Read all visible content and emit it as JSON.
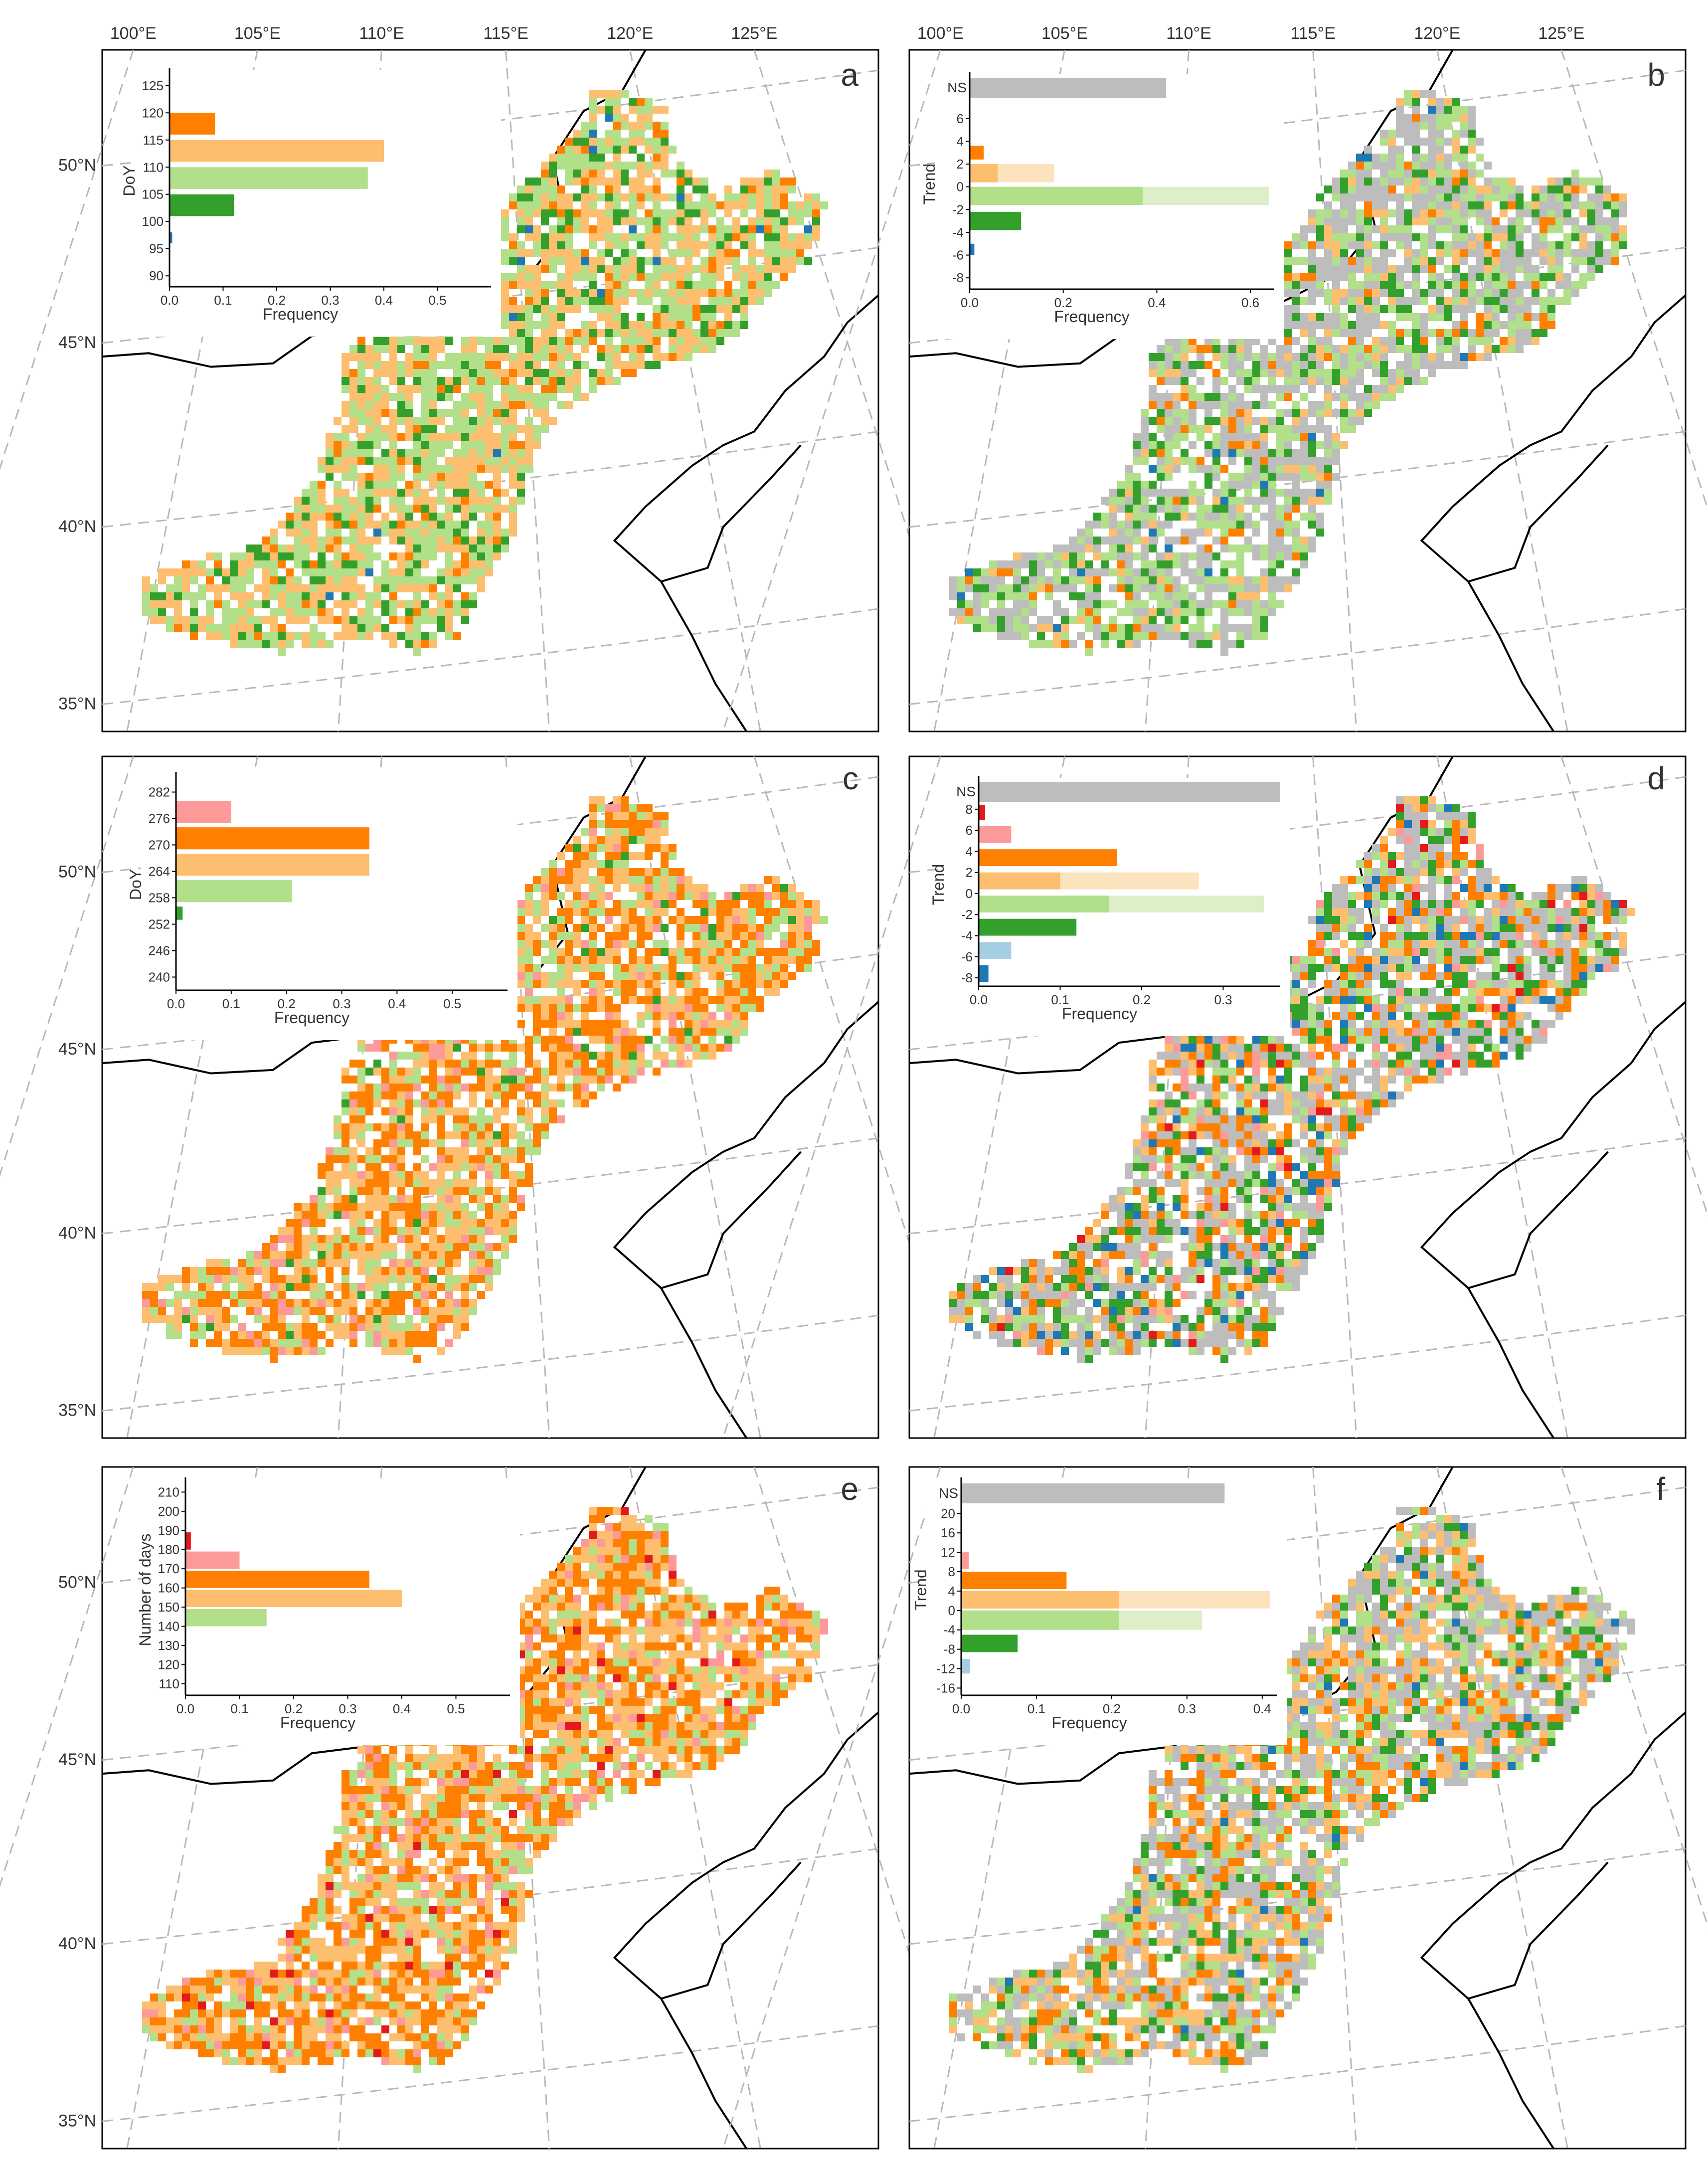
{
  "figure": {
    "top_lon_labels": [
      "100°E",
      "105°E",
      "110°E",
      "115°E",
      "120°E",
      "125°E"
    ],
    "lat_labels": [
      "50°N",
      "45°N",
      "40°N",
      "35°N"
    ]
  },
  "colors": {
    "dark_green": "#33a02c",
    "light_green": "#b2df8a",
    "light_green_pale": "#dcefc8",
    "light_orange": "#fdbf6f",
    "light_orange_pale": "#fde2be",
    "orange": "#ff7f00",
    "pink": "#fb9a99",
    "red": "#e31a1c",
    "light_blue": "#a6cee3",
    "blue": "#1f78b4",
    "gray": "#bdbdbd"
  },
  "chart_data": [
    {
      "panel": "a",
      "type": "bar",
      "orientation": "horizontal",
      "ylabel": "DoY",
      "xlabel": "Frequency",
      "yticks": [
        90,
        95,
        100,
        105,
        110,
        115,
        120,
        125
      ],
      "xticks": [
        0.0,
        0.1,
        0.2,
        0.3,
        0.4,
        0.5
      ],
      "xlim": [
        0,
        0.6
      ],
      "ylim": [
        88,
        127
      ],
      "bars": [
        {
          "y0": 96,
          "y1": 98,
          "value": 0.005,
          "color": "blue"
        },
        {
          "y0": 101,
          "y1": 105,
          "value": 0.12,
          "color": "dark_green"
        },
        {
          "y0": 106,
          "y1": 110,
          "value": 0.37,
          "color": "light_green"
        },
        {
          "y0": 111,
          "y1": 115,
          "value": 0.4,
          "color": "light_orange"
        },
        {
          "y0": 116,
          "y1": 120,
          "value": 0.085,
          "color": "orange"
        }
      ]
    },
    {
      "panel": "b",
      "type": "bar",
      "orientation": "horizontal",
      "ylabel": "Trend",
      "xlabel": "Frequency",
      "ns_label": "NS",
      "ns_value": 0.42,
      "yticks": [
        -8,
        -6,
        -4,
        -2,
        0,
        2,
        4,
        6
      ],
      "xticks": [
        0.0,
        0.2,
        0.4,
        0.6
      ],
      "xlim": [
        0,
        0.65
      ],
      "ylim": [
        -9,
        9.5
      ],
      "bars": [
        {
          "y0": -6,
          "y1": -5,
          "value": 0.01,
          "color": "blue"
        },
        {
          "y0": -3.8,
          "y1": -2.2,
          "value": 0.11,
          "color": "dark_green"
        },
        {
          "y0": -1.6,
          "y1": 0,
          "value": 0.37,
          "pale": 0.64,
          "color": "light_green"
        },
        {
          "y0": 0.4,
          "y1": 2,
          "value": 0.06,
          "pale": 0.18,
          "color": "light_orange"
        },
        {
          "y0": 2.4,
          "y1": 3.6,
          "value": 0.03,
          "color": "orange"
        }
      ]
    },
    {
      "panel": "c",
      "type": "bar",
      "orientation": "horizontal",
      "ylabel": "DoY",
      "xlabel": "Frequency",
      "yticks": [
        240,
        246,
        252,
        258,
        264,
        270,
        276,
        282
      ],
      "xticks": [
        0.0,
        0.1,
        0.2,
        0.3,
        0.4,
        0.5
      ],
      "xlim": [
        0,
        0.6
      ],
      "ylim": [
        237,
        285
      ],
      "bars": [
        {
          "y0": 253,
          "y1": 256,
          "value": 0.012,
          "color": "dark_green"
        },
        {
          "y0": 257,
          "y1": 262,
          "value": 0.21,
          "color": "light_green"
        },
        {
          "y0": 263,
          "y1": 268,
          "value": 0.35,
          "color": "light_orange"
        },
        {
          "y0": 269,
          "y1": 274,
          "value": 0.35,
          "color": "orange"
        },
        {
          "y0": 275,
          "y1": 280,
          "value": 0.1,
          "color": "pink"
        }
      ]
    },
    {
      "panel": "d",
      "type": "bar",
      "orientation": "horizontal",
      "ylabel": "Trend",
      "xlabel": "Frequency",
      "ns_label": "NS",
      "ns_value": 0.37,
      "yticks": [
        -8,
        -6,
        -4,
        -2,
        0,
        2,
        4,
        6,
        8
      ],
      "xticks": [
        0.0,
        0.1,
        0.2,
        0.3
      ],
      "xlim": [
        0,
        0.37
      ],
      "ylim": [
        -8.8,
        10.5
      ],
      "bars": [
        {
          "y0": -8.4,
          "y1": -6.8,
          "value": 0.012,
          "color": "blue"
        },
        {
          "y0": -6.2,
          "y1": -4.6,
          "value": 0.04,
          "color": "light_blue"
        },
        {
          "y0": -4,
          "y1": -2.4,
          "value": 0.12,
          "color": "dark_green"
        },
        {
          "y0": -1.8,
          "y1": -0.2,
          "value": 0.16,
          "pale": 0.35,
          "color": "light_green"
        },
        {
          "y0": 0.4,
          "y1": 2,
          "value": 0.1,
          "pale": 0.27,
          "color": "light_orange"
        },
        {
          "y0": 2.6,
          "y1": 4.2,
          "value": 0.17,
          "color": "orange"
        },
        {
          "y0": 4.8,
          "y1": 6.4,
          "value": 0.04,
          "color": "pink"
        },
        {
          "y0": 7,
          "y1": 8.4,
          "value": 0.008,
          "color": "red"
        }
      ]
    },
    {
      "panel": "e",
      "type": "bar",
      "orientation": "horizontal",
      "ylabel": "Number of days",
      "xlabel": "Frequency",
      "yticks": [
        110,
        120,
        130,
        140,
        150,
        160,
        170,
        180,
        190,
        200,
        210
      ],
      "xticks": [
        0.0,
        0.1,
        0.2,
        0.3,
        0.4,
        0.5
      ],
      "xlim": [
        0,
        0.6
      ],
      "ylim": [
        104,
        214
      ],
      "bars": [
        {
          "y0": 140,
          "y1": 149,
          "value": 0.15,
          "color": "light_green"
        },
        {
          "y0": 150,
          "y1": 159,
          "value": 0.4,
          "color": "light_orange"
        },
        {
          "y0": 160,
          "y1": 169,
          "value": 0.34,
          "color": "orange"
        },
        {
          "y0": 170,
          "y1": 179,
          "value": 0.1,
          "color": "pink"
        },
        {
          "y0": 180,
          "y1": 189,
          "value": 0.01,
          "color": "red"
        }
      ]
    },
    {
      "panel": "f",
      "type": "bar",
      "orientation": "horizontal",
      "ylabel": "Trend",
      "xlabel": "Frequency",
      "ns_label": "NS",
      "ns_value": 0.35,
      "yticks": [
        -16,
        -12,
        -8,
        -4,
        0,
        4,
        8,
        12,
        16,
        20
      ],
      "xticks": [
        0.0,
        0.1,
        0.2,
        0.3,
        0.4
      ],
      "xlim": [
        0,
        0.42
      ],
      "ylim": [
        -17.5,
        26
      ],
      "bars": [
        {
          "y0": -13,
          "y1": -10,
          "value": 0.012,
          "color": "light_blue"
        },
        {
          "y0": -8.6,
          "y1": -5,
          "value": 0.075,
          "color": "dark_green"
        },
        {
          "y0": -4,
          "y1": 0,
          "value": 0.21,
          "pale": 0.32,
          "color": "light_green"
        },
        {
          "y0": 0.4,
          "y1": 4,
          "value": 0.21,
          "pale": 0.41,
          "color": "light_orange"
        },
        {
          "y0": 4.4,
          "y1": 8,
          "value": 0.14,
          "color": "orange"
        },
        {
          "y0": 8.6,
          "y1": 12,
          "value": 0.01,
          "color": "pink"
        }
      ]
    }
  ],
  "panels": [
    {
      "letter": "a",
      "map_palette": [
        "orange",
        "light_orange",
        "light_green",
        "dark_green",
        "blue"
      ],
      "map_weights": [
        0.08,
        0.38,
        0.38,
        0.15,
        0.01
      ]
    },
    {
      "letter": "b",
      "map_palette": [
        "gray",
        "light_green",
        "dark_green",
        "orange",
        "light_orange",
        "blue"
      ],
      "map_weights": [
        0.42,
        0.3,
        0.13,
        0.05,
        0.09,
        0.01
      ]
    },
    {
      "letter": "c",
      "map_palette": [
        "orange",
        "light_orange",
        "light_green",
        "pink",
        "dark_green"
      ],
      "map_weights": [
        0.38,
        0.3,
        0.2,
        0.09,
        0.03
      ]
    },
    {
      "letter": "d",
      "map_palette": [
        "gray",
        "dark_green",
        "orange",
        "light_green",
        "light_orange",
        "blue",
        "pink",
        "red"
      ],
      "map_weights": [
        0.34,
        0.16,
        0.16,
        0.12,
        0.1,
        0.05,
        0.05,
        0.02
      ]
    },
    {
      "letter": "e",
      "map_palette": [
        "orange",
        "light_orange",
        "light_green",
        "pink",
        "red"
      ],
      "map_weights": [
        0.36,
        0.36,
        0.16,
        0.09,
        0.03
      ]
    },
    {
      "letter": "f",
      "map_palette": [
        "gray",
        "light_orange",
        "orange",
        "light_green",
        "dark_green",
        "blue"
      ],
      "map_weights": [
        0.35,
        0.2,
        0.14,
        0.18,
        0.11,
        0.02
      ]
    }
  ]
}
